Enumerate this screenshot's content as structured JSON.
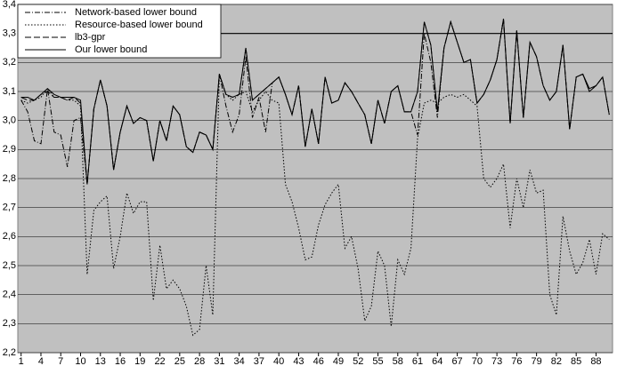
{
  "chart_data": {
    "type": "line",
    "x": [
      1,
      2,
      3,
      4,
      5,
      6,
      7,
      8,
      9,
      10,
      11,
      12,
      13,
      14,
      15,
      16,
      17,
      18,
      19,
      20,
      21,
      22,
      23,
      24,
      25,
      26,
      27,
      28,
      29,
      30,
      31,
      32,
      33,
      34,
      35,
      36,
      37,
      38,
      39,
      40,
      41,
      42,
      43,
      44,
      45,
      46,
      47,
      48,
      49,
      50,
      51,
      52,
      53,
      54,
      55,
      56,
      57,
      58,
      59,
      60,
      61,
      62,
      63,
      64,
      65,
      66,
      67,
      68,
      69,
      70,
      71,
      72,
      73,
      74,
      75,
      76,
      77,
      78,
      79,
      80,
      81,
      82,
      83,
      84,
      85,
      86,
      87,
      88,
      89,
      90
    ],
    "xlim": [
      0.5,
      90.5
    ],
    "xticks": [
      1,
      4,
      7,
      10,
      13,
      16,
      19,
      22,
      25,
      28,
      31,
      34,
      37,
      40,
      43,
      46,
      49,
      52,
      55,
      58,
      61,
      64,
      67,
      70,
      73,
      76,
      79,
      82,
      85,
      88
    ],
    "ylim": [
      2.2,
      3.4
    ],
    "yticks": [
      {
        "value": 2.2,
        "label": "2,2"
      },
      {
        "value": 2.3,
        "label": "2,3"
      },
      {
        "value": 2.4,
        "label": "2,4"
      },
      {
        "value": 2.5,
        "label": "2,5"
      },
      {
        "value": 2.6,
        "label": "2,6"
      },
      {
        "value": 2.7,
        "label": "2,7"
      },
      {
        "value": 2.8,
        "label": "2,8"
      },
      {
        "value": 2.9,
        "label": "2,9"
      },
      {
        "value": 3.0,
        "label": "3,0"
      },
      {
        "value": 3.1,
        "label": "3,1"
      },
      {
        "value": 3.2,
        "label": "3,2"
      },
      {
        "value": 3.3,
        "label": "3,3"
      },
      {
        "value": 3.4,
        "label": "3,4"
      }
    ],
    "grid": true,
    "reference_line": 3.3,
    "legend": "top-left",
    "series": [
      {
        "name": "Network-based lower bound",
        "color": "#000000",
        "dash": "dashdot",
        "values": [
          3.07,
          3.03,
          2.93,
          2.92,
          3.11,
          2.96,
          2.95,
          2.84,
          3.0,
          3.01,
          2.78,
          3.04,
          3.14,
          3.05,
          2.83,
          2.96,
          3.05,
          2.99,
          3.01,
          3.0,
          2.86,
          3.0,
          2.93,
          3.05,
          3.02,
          2.91,
          2.89,
          2.96,
          2.95,
          2.9,
          3.16,
          3.05,
          2.96,
          3.02,
          3.22,
          3.01,
          3.08,
          2.96,
          3.13,
          3.15,
          3.09,
          3.02,
          3.12,
          2.91,
          3.04,
          2.92,
          3.15,
          3.06,
          3.07,
          3.13,
          3.1,
          3.06,
          3.02,
          2.92,
          3.07,
          2.99,
          3.1,
          3.12,
          3.03,
          3.03,
          2.95,
          3.3,
          3.2,
          3.01,
          3.25,
          3.34,
          3.27,
          3.2,
          3.21,
          3.06,
          3.09,
          3.14,
          3.21,
          3.35,
          2.99,
          3.31,
          3.01,
          3.27,
          3.22,
          3.12,
          3.07,
          3.1,
          3.26,
          2.97,
          3.15,
          3.16,
          3.1,
          3.12,
          3.15,
          3.02
        ]
      },
      {
        "name": "Resource-based lower bound",
        "color": "#000000",
        "dash": "dotted",
        "values": [
          3.07,
          3.06,
          3.07,
          3.08,
          3.11,
          3.08,
          3.08,
          3.07,
          3.07,
          3.05,
          2.47,
          2.69,
          2.72,
          2.74,
          2.49,
          2.6,
          2.75,
          2.68,
          2.72,
          2.72,
          2.38,
          2.57,
          2.42,
          2.45,
          2.42,
          2.36,
          2.26,
          2.28,
          2.5,
          2.33,
          3.16,
          3.09,
          3.07,
          3.09,
          3.1,
          3.03,
          3.07,
          3.1,
          3.07,
          3.06,
          2.78,
          2.72,
          2.63,
          2.52,
          2.53,
          2.64,
          2.71,
          2.75,
          2.78,
          2.56,
          2.6,
          2.49,
          2.31,
          2.36,
          2.55,
          2.5,
          2.29,
          2.52,
          2.47,
          2.56,
          2.94,
          3.06,
          3.07,
          3.06,
          3.08,
          3.09,
          3.08,
          3.09,
          3.07,
          3.05,
          2.8,
          2.77,
          2.8,
          2.85,
          2.63,
          2.8,
          2.7,
          2.83,
          2.75,
          2.76,
          2.4,
          2.33,
          2.67,
          2.55,
          2.47,
          2.51,
          2.59,
          2.47,
          2.61,
          2.59
        ]
      },
      {
        "name": "lb3-gpr",
        "color": "#000000",
        "dash": "dashed",
        "values": [
          3.08,
          3.07,
          3.07,
          3.09,
          3.1,
          3.08,
          3.08,
          3.07,
          3.08,
          3.06,
          2.78,
          3.04,
          3.14,
          3.05,
          2.83,
          2.96,
          3.05,
          2.99,
          3.01,
          3.0,
          2.86,
          3.0,
          2.93,
          3.05,
          3.02,
          2.91,
          2.89,
          2.96,
          2.95,
          2.9,
          3.16,
          3.09,
          3.08,
          3.09,
          3.25,
          3.07,
          3.09,
          3.11,
          3.13,
          3.15,
          3.09,
          3.02,
          3.12,
          2.91,
          3.04,
          2.92,
          3.15,
          3.06,
          3.07,
          3.13,
          3.1,
          3.06,
          3.02,
          2.92,
          3.07,
          2.99,
          3.1,
          3.12,
          3.03,
          3.03,
          3.1,
          3.34,
          3.26,
          3.03,
          3.25,
          3.34,
          3.27,
          3.2,
          3.21,
          3.06,
          3.09,
          3.14,
          3.21,
          3.35,
          2.99,
          3.31,
          3.01,
          3.27,
          3.22,
          3.12,
          3.07,
          3.1,
          3.26,
          2.97,
          3.15,
          3.16,
          3.1,
          3.12,
          3.15,
          3.02
        ]
      },
      {
        "name": "Our lower bound",
        "color": "#000000",
        "dash": "solid",
        "values": [
          3.08,
          3.08,
          3.07,
          3.09,
          3.11,
          3.09,
          3.08,
          3.08,
          3.08,
          3.07,
          2.78,
          3.04,
          3.14,
          3.05,
          2.83,
          2.96,
          3.05,
          2.99,
          3.01,
          3.0,
          2.86,
          3.0,
          2.93,
          3.05,
          3.02,
          2.91,
          2.89,
          2.96,
          2.95,
          2.9,
          3.16,
          3.09,
          3.08,
          3.09,
          3.25,
          3.07,
          3.09,
          3.11,
          3.13,
          3.15,
          3.09,
          3.02,
          3.12,
          2.91,
          3.04,
          2.92,
          3.15,
          3.06,
          3.07,
          3.13,
          3.1,
          3.06,
          3.02,
          2.92,
          3.07,
          2.99,
          3.1,
          3.12,
          3.03,
          3.03,
          3.1,
          3.34,
          3.26,
          3.03,
          3.25,
          3.34,
          3.27,
          3.2,
          3.21,
          3.06,
          3.09,
          3.14,
          3.21,
          3.35,
          2.99,
          3.31,
          3.01,
          3.27,
          3.22,
          3.12,
          3.07,
          3.1,
          3.26,
          2.97,
          3.15,
          3.16,
          3.11,
          3.12,
          3.15,
          3.02
        ]
      }
    ]
  }
}
